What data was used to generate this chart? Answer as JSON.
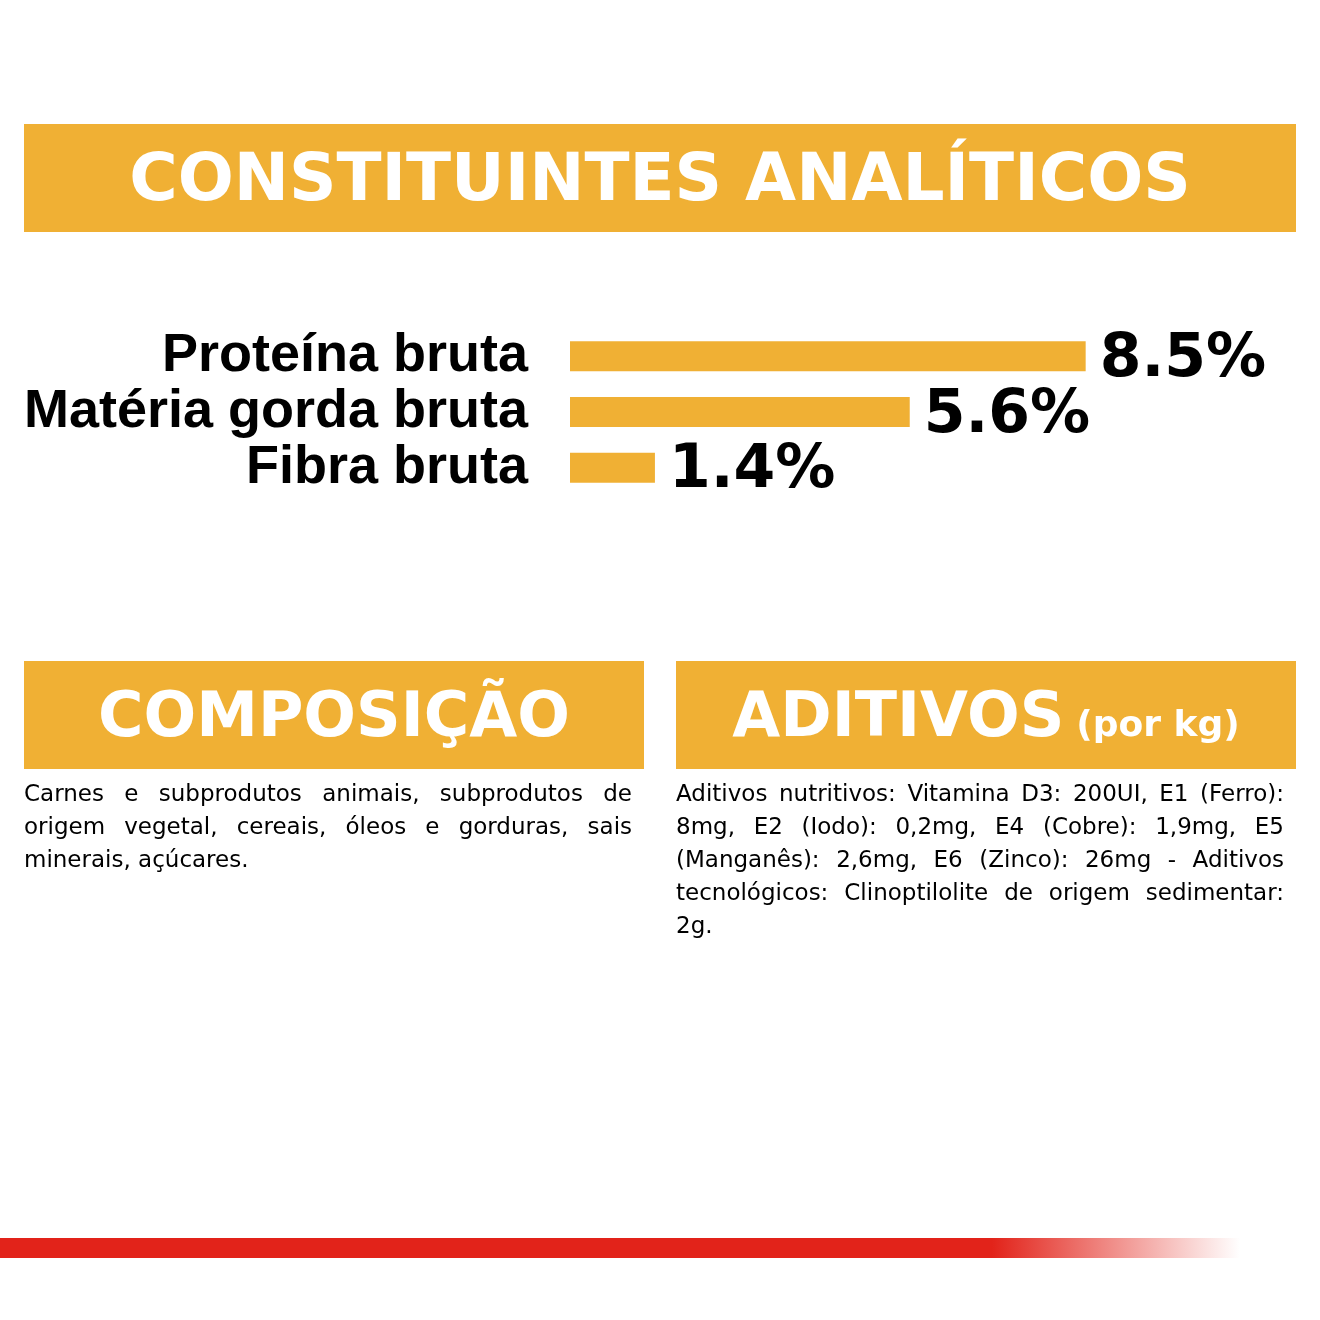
{
  "chart_data": [
    {
      "type": "bar",
      "orientation": "horizontal",
      "title": "CONSTITUINTES ANALÍTICOS",
      "categories": [
        "Proteína bruta",
        "Matéria gorda bruta",
        "Fibra bruta"
      ],
      "values": [
        8.5,
        5.6,
        1.4
      ],
      "value_labels": [
        "8.5%",
        "5.6%",
        "1.4%"
      ],
      "color": "#f0b034",
      "grid": false,
      "legend": false
    },
    {
      "type": "other",
      "title": "COMPOSIÇÃO",
      "annotations": [
        "Carnes e subprodutos animais, subprodutos de origem vegetal, cereais, óleos e gorduras, sais minerais, açúcares."
      ]
    },
    {
      "type": "other",
      "title": "ADITIVOS",
      "subtitle": "(por kg)",
      "annotations": [
        "Aditivos nutritivos: Vitamina D3: 200UI, E1 (Ferro): 8mg, E2 (Iodo): 0,2mg, E4 (Cobre): 1,9mg, E5 (Manganês): 2,6mg, E6 (Zinco): 26mg - Aditivos tecnológicos: Clinoptilolite de origem sedimentar: 2g."
      ]
    }
  ]
}
